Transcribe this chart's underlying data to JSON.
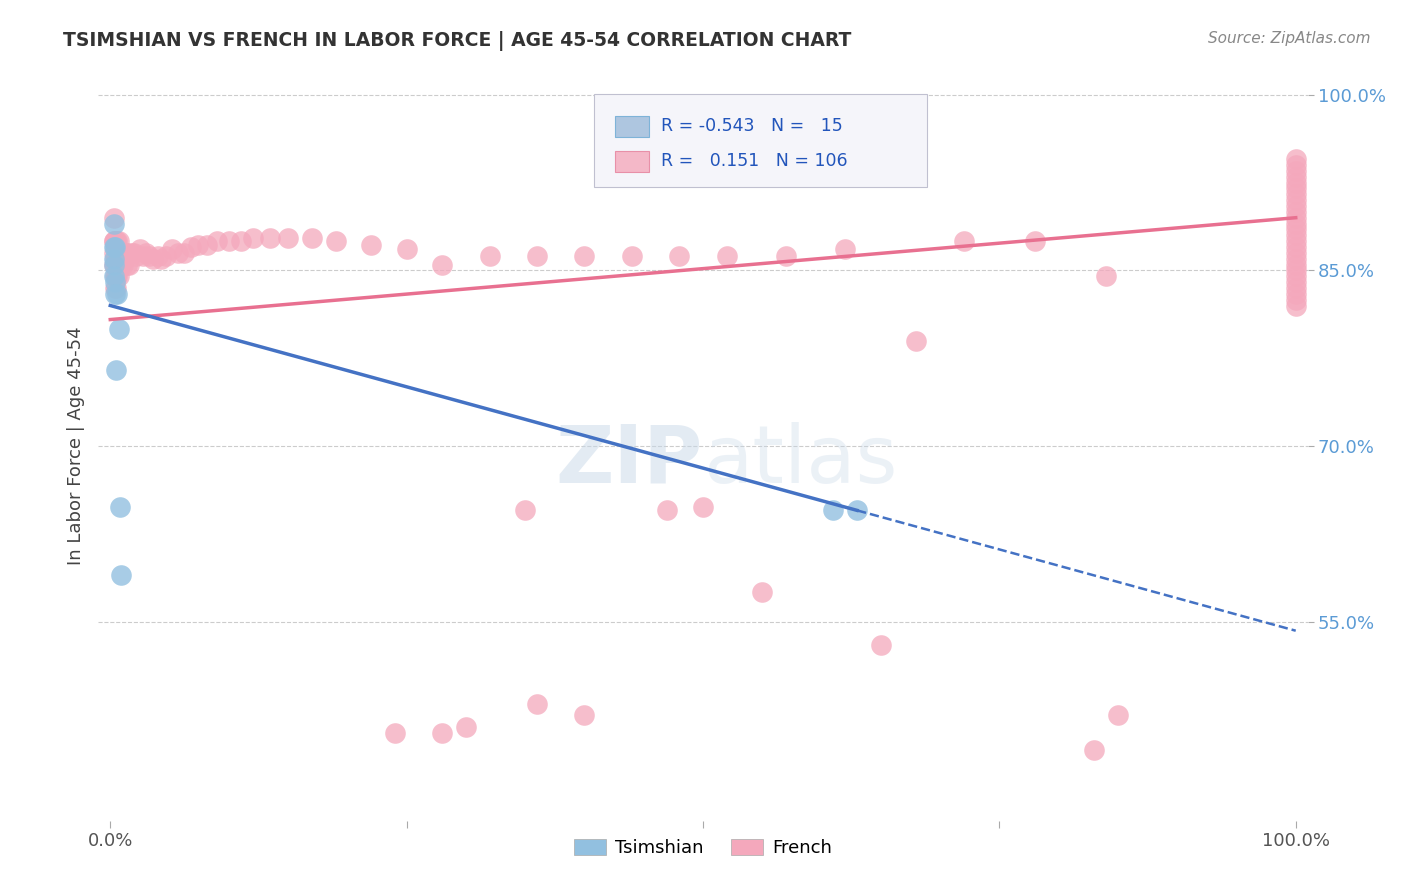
{
  "title": "TSIMSHIAN VS FRENCH IN LABOR FORCE | AGE 45-54 CORRELATION CHART",
  "ylabel": "In Labor Force | Age 45-54",
  "source": "Source: ZipAtlas.com",
  "watermark": "ZIPatlas",
  "tsimshian_R": -0.543,
  "tsimshian_N": 15,
  "french_R": 0.151,
  "french_N": 106,
  "tsimshian_color": "#92C0E0",
  "french_color": "#F4A8BC",
  "tsimshian_line_color": "#4472C4",
  "french_line_color": "#E87090",
  "background_color": "#ffffff",
  "grid_color": "#cccccc",
  "ytick_positions": [
    0.55,
    0.7,
    0.85,
    1.0
  ],
  "ytick_labels": [
    "55.0%",
    "70.0%",
    "85.0%",
    "100.0%"
  ],
  "tsimshian_x": [
    0.003,
    0.003,
    0.003,
    0.003,
    0.003,
    0.004,
    0.004,
    0.004,
    0.005,
    0.006,
    0.007,
    0.008,
    0.009,
    0.61,
    0.63
  ],
  "tsimshian_y": [
    0.89,
    0.87,
    0.86,
    0.855,
    0.845,
    0.87,
    0.84,
    0.83,
    0.765,
    0.83,
    0.8,
    0.648,
    0.59,
    0.645,
    0.645
  ],
  "french_x": [
    0.003,
    0.003,
    0.003,
    0.003,
    0.003,
    0.004,
    0.004,
    0.004,
    0.004,
    0.004,
    0.005,
    0.005,
    0.005,
    0.005,
    0.006,
    0.006,
    0.006,
    0.007,
    0.007,
    0.007,
    0.008,
    0.009,
    0.01,
    0.011,
    0.013,
    0.014,
    0.015,
    0.016,
    0.018,
    0.02,
    0.022,
    0.025,
    0.028,
    0.03,
    0.033,
    0.036,
    0.04,
    0.043,
    0.047,
    0.052,
    0.057,
    0.062,
    0.068,
    0.074,
    0.082,
    0.09,
    0.1,
    0.11,
    0.12,
    0.135,
    0.15,
    0.17,
    0.19,
    0.22,
    0.25,
    0.28,
    0.32,
    0.36,
    0.4,
    0.44,
    0.48,
    0.52,
    0.57,
    0.62,
    0.68,
    0.72,
    0.78,
    0.84,
    0.5,
    0.47,
    0.35,
    0.36,
    0.65,
    0.3,
    0.28,
    0.24,
    0.55,
    0.4,
    0.85,
    0.83,
    1.0,
    1.0,
    1.0,
    1.0,
    1.0,
    1.0,
    1.0,
    1.0,
    1.0,
    1.0,
    1.0,
    1.0,
    1.0,
    1.0,
    1.0,
    1.0,
    1.0,
    1.0,
    1.0,
    1.0,
    1.0,
    1.0,
    1.0,
    1.0,
    1.0,
    1.0
  ],
  "french_y": [
    0.895,
    0.875,
    0.875,
    0.865,
    0.855,
    0.875,
    0.86,
    0.855,
    0.845,
    0.835,
    0.875,
    0.86,
    0.845,
    0.835,
    0.875,
    0.86,
    0.845,
    0.875,
    0.86,
    0.845,
    0.86,
    0.855,
    0.86,
    0.855,
    0.865,
    0.855,
    0.865,
    0.855,
    0.865,
    0.865,
    0.862,
    0.868,
    0.862,
    0.865,
    0.862,
    0.86,
    0.862,
    0.86,
    0.862,
    0.868,
    0.865,
    0.865,
    0.87,
    0.872,
    0.872,
    0.875,
    0.875,
    0.875,
    0.878,
    0.878,
    0.878,
    0.878,
    0.875,
    0.872,
    0.868,
    0.855,
    0.862,
    0.862,
    0.862,
    0.862,
    0.862,
    0.862,
    0.862,
    0.868,
    0.79,
    0.875,
    0.875,
    0.845,
    0.648,
    0.645,
    0.645,
    0.48,
    0.53,
    0.46,
    0.455,
    0.455,
    0.575,
    0.47,
    0.47,
    0.44,
    0.945,
    0.94,
    0.935,
    0.93,
    0.925,
    0.92,
    0.915,
    0.91,
    0.905,
    0.9,
    0.895,
    0.89,
    0.885,
    0.88,
    0.875,
    0.87,
    0.865,
    0.86,
    0.855,
    0.85,
    0.845,
    0.84,
    0.835,
    0.83,
    0.825,
    0.82
  ]
}
